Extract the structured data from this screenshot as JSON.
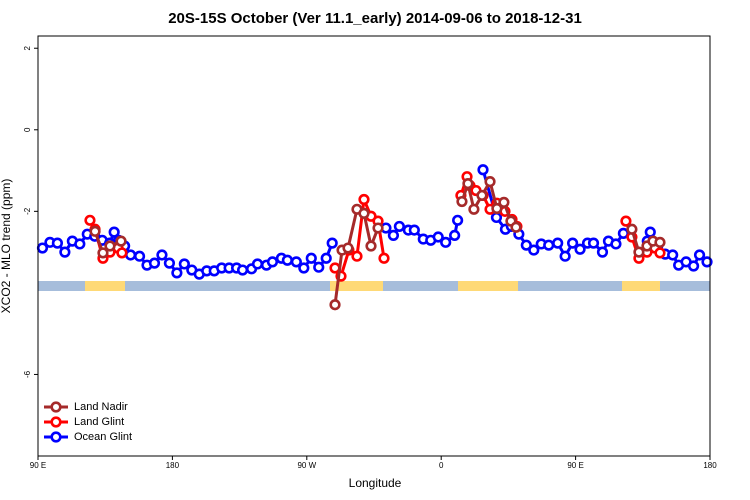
{
  "chart_data": {
    "type": "line",
    "title": "20S-15S October (Ver 11.1_early)   2014-09-06 to 2018-12-31",
    "xlabel": "Longitude",
    "ylabel": "XCO2 - MLO trend (ppm)",
    "xlim": [
      90,
      540
    ],
    "xticks": [
      {
        "value": 90,
        "label": "90 E"
      },
      180,
      {
        "value": 270,
        "label": "90 W"
      },
      {
        "value": 360,
        "label": "0"
      },
      {
        "value": 450,
        "label": "90 E"
      },
      {
        "value": 540,
        "label": "180"
      }
    ],
    "ylim": [
      -8,
      2.3
    ],
    "yticks": [
      2,
      0,
      -2,
      -6
    ],
    "legend": "bottom-left",
    "series": [
      {
        "name": "Land Nadir",
        "color": "#a52a2a",
        "x": [
          128.2,
          133.5,
          138.2,
          145.6,
          null,
          288.9,
          293.6,
          297.6,
          303.6,
          308.3,
          313.0,
          317.7,
          null,
          373.9,
          377.9,
          381.9,
          387.3,
          392.7,
          397.3,
          402.0,
          406.7,
          410.1,
          null,
          487.7,
          492.4,
          497.8,
          501.8,
          506.5
        ],
        "values": [
          -2.49,
          -3.02,
          -2.85,
          -2.73,
          null,
          -4.29,
          -2.95,
          -2.9,
          -1.95,
          -2.05,
          -2.85,
          -2.41,
          null,
          -1.76,
          -1.32,
          -1.95,
          -1.61,
          -1.27,
          -1.93,
          -1.78,
          -2.24,
          -2.39,
          null,
          -2.44,
          -3.0,
          -2.85,
          -2.73,
          -2.76
        ]
      },
      {
        "name": "Land Glint",
        "color": "#ff0000",
        "x": [
          124.8,
          128.2,
          133.5,
          138.2,
          143.6,
          146.2,
          null,
          288.9,
          292.9,
          298.2,
          303.6,
          308.3,
          313.0,
          317.7,
          321.7,
          null,
          373.2,
          377.3,
          379.3,
          383.3,
          388.0,
          392.7,
          397.3,
          402.7,
          407.4,
          410.7,
          null,
          483.7,
          487.7,
          492.4,
          497.8,
          503.1,
          506.5
        ],
        "values": [
          -2.22,
          -2.44,
          -3.15,
          -3.0,
          -2.9,
          -3.02,
          null,
          -3.39,
          -3.59,
          -2.95,
          -3.1,
          -1.71,
          -2.12,
          -2.24,
          -3.15,
          null,
          -1.61,
          -1.15,
          -1.37,
          -1.49,
          -1.61,
          -1.95,
          -1.8,
          -2.0,
          -2.2,
          -2.37,
          null,
          -2.24,
          -2.63,
          -3.15,
          -3.0,
          -2.9,
          -3.02
        ]
      },
      {
        "name": "Ocean Glint",
        "color": "#0000ff",
        "x": [
          93,
          98,
          103,
          108,
          113,
          118,
          123,
          128,
          133,
          138,
          141,
          144,
          148,
          152,
          158,
          163,
          168,
          173,
          178,
          183,
          188,
          193,
          198,
          203,
          208,
          213,
          218,
          223,
          227,
          233,
          237,
          243,
          247,
          253,
          257,
          263,
          268,
          273,
          278,
          283,
          287,
          null,
          323,
          328,
          332,
          338,
          342,
          348,
          353,
          358,
          363,
          369,
          371,
          null,
          388,
          397,
          403,
          407,
          412,
          417,
          422,
          427,
          432,
          438,
          443,
          448,
          453,
          458,
          462,
          468,
          472,
          477,
          482,
          null,
          498,
          500,
          505,
          510,
          515,
          519,
          524,
          529,
          533,
          538
        ],
        "values": [
          -2.9,
          -2.76,
          -2.78,
          -3.0,
          -2.73,
          -2.8,
          -2.56,
          -2.61,
          -2.71,
          -2.78,
          -2.51,
          -2.71,
          -2.85,
          -3.07,
          -3.1,
          -3.32,
          -3.27,
          -3.07,
          -3.27,
          -3.51,
          -3.29,
          -3.44,
          -3.54,
          -3.46,
          -3.46,
          -3.39,
          -3.39,
          -3.39,
          -3.44,
          -3.41,
          -3.29,
          -3.32,
          -3.24,
          -3.15,
          -3.2,
          -3.24,
          -3.39,
          -3.15,
          -3.37,
          -3.15,
          -2.78,
          null,
          -2.41,
          -2.59,
          -2.37,
          -2.46,
          -2.46,
          -2.68,
          -2.71,
          -2.63,
          -2.76,
          -2.59,
          -2.22,
          null,
          -0.98,
          -2.15,
          -2.44,
          -2.37,
          -2.56,
          -2.83,
          -2.95,
          -2.8,
          -2.83,
          -2.78,
          -3.1,
          -2.78,
          -2.93,
          -2.78,
          -2.78,
          -3.0,
          -2.73,
          -2.8,
          -2.54,
          null,
          -2.73,
          -2.51,
          -2.85,
          -3.05,
          -3.07,
          -3.32,
          -3.24,
          -3.34,
          -3.07,
          -3.24
        ]
      }
    ]
  }
}
